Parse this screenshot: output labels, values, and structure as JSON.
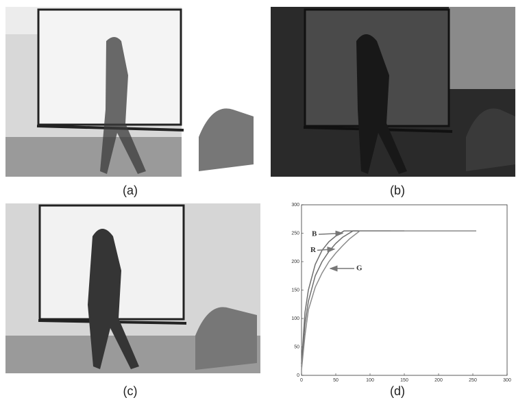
{
  "panels": [
    {
      "label": "(a)"
    },
    {
      "label": "(b)"
    },
    {
      "label": "(c)"
    },
    {
      "label": "(d)"
    }
  ],
  "chart_data": {
    "type": "line",
    "xlim": [
      0,
      300
    ],
    "xticks": [
      0,
      50,
      100,
      150,
      200,
      250,
      300
    ],
    "ylim": [
      0,
      300
    ],
    "yticks": [
      0,
      50,
      100,
      150,
      200,
      250,
      300
    ],
    "series": [
      {
        "name": "B",
        "color": "#6e6e6e",
        "x": [
          0,
          5,
          10,
          20,
          30,
          40,
          50,
          62,
          100,
          150
        ],
        "values": [
          20,
          110,
          150,
          195,
          220,
          235,
          245,
          254,
          254,
          254
        ]
      },
      {
        "name": "R",
        "color": "#6e6e6e",
        "x": [
          0,
          5,
          10,
          20,
          30,
          40,
          50,
          60,
          75,
          130
        ],
        "values": [
          15,
          90,
          130,
          175,
          200,
          218,
          232,
          243,
          254,
          254
        ]
      },
      {
        "name": "G",
        "color": "#8a8a8a",
        "x": [
          0,
          5,
          10,
          20,
          30,
          40,
          50,
          60,
          70,
          85,
          255
        ],
        "values": [
          10,
          70,
          115,
          155,
          180,
          200,
          215,
          228,
          240,
          254,
          254
        ]
      }
    ],
    "annotations": [
      {
        "text": "B",
        "x": 15,
        "y": 248,
        "to_x": 60,
        "to_y": 250
      },
      {
        "text": "R",
        "x": 13,
        "y": 220,
        "to_x": 48,
        "to_y": 222
      },
      {
        "text": "G",
        "x": 80,
        "y": 188,
        "to_x": 42,
        "to_y": 188
      }
    ]
  }
}
